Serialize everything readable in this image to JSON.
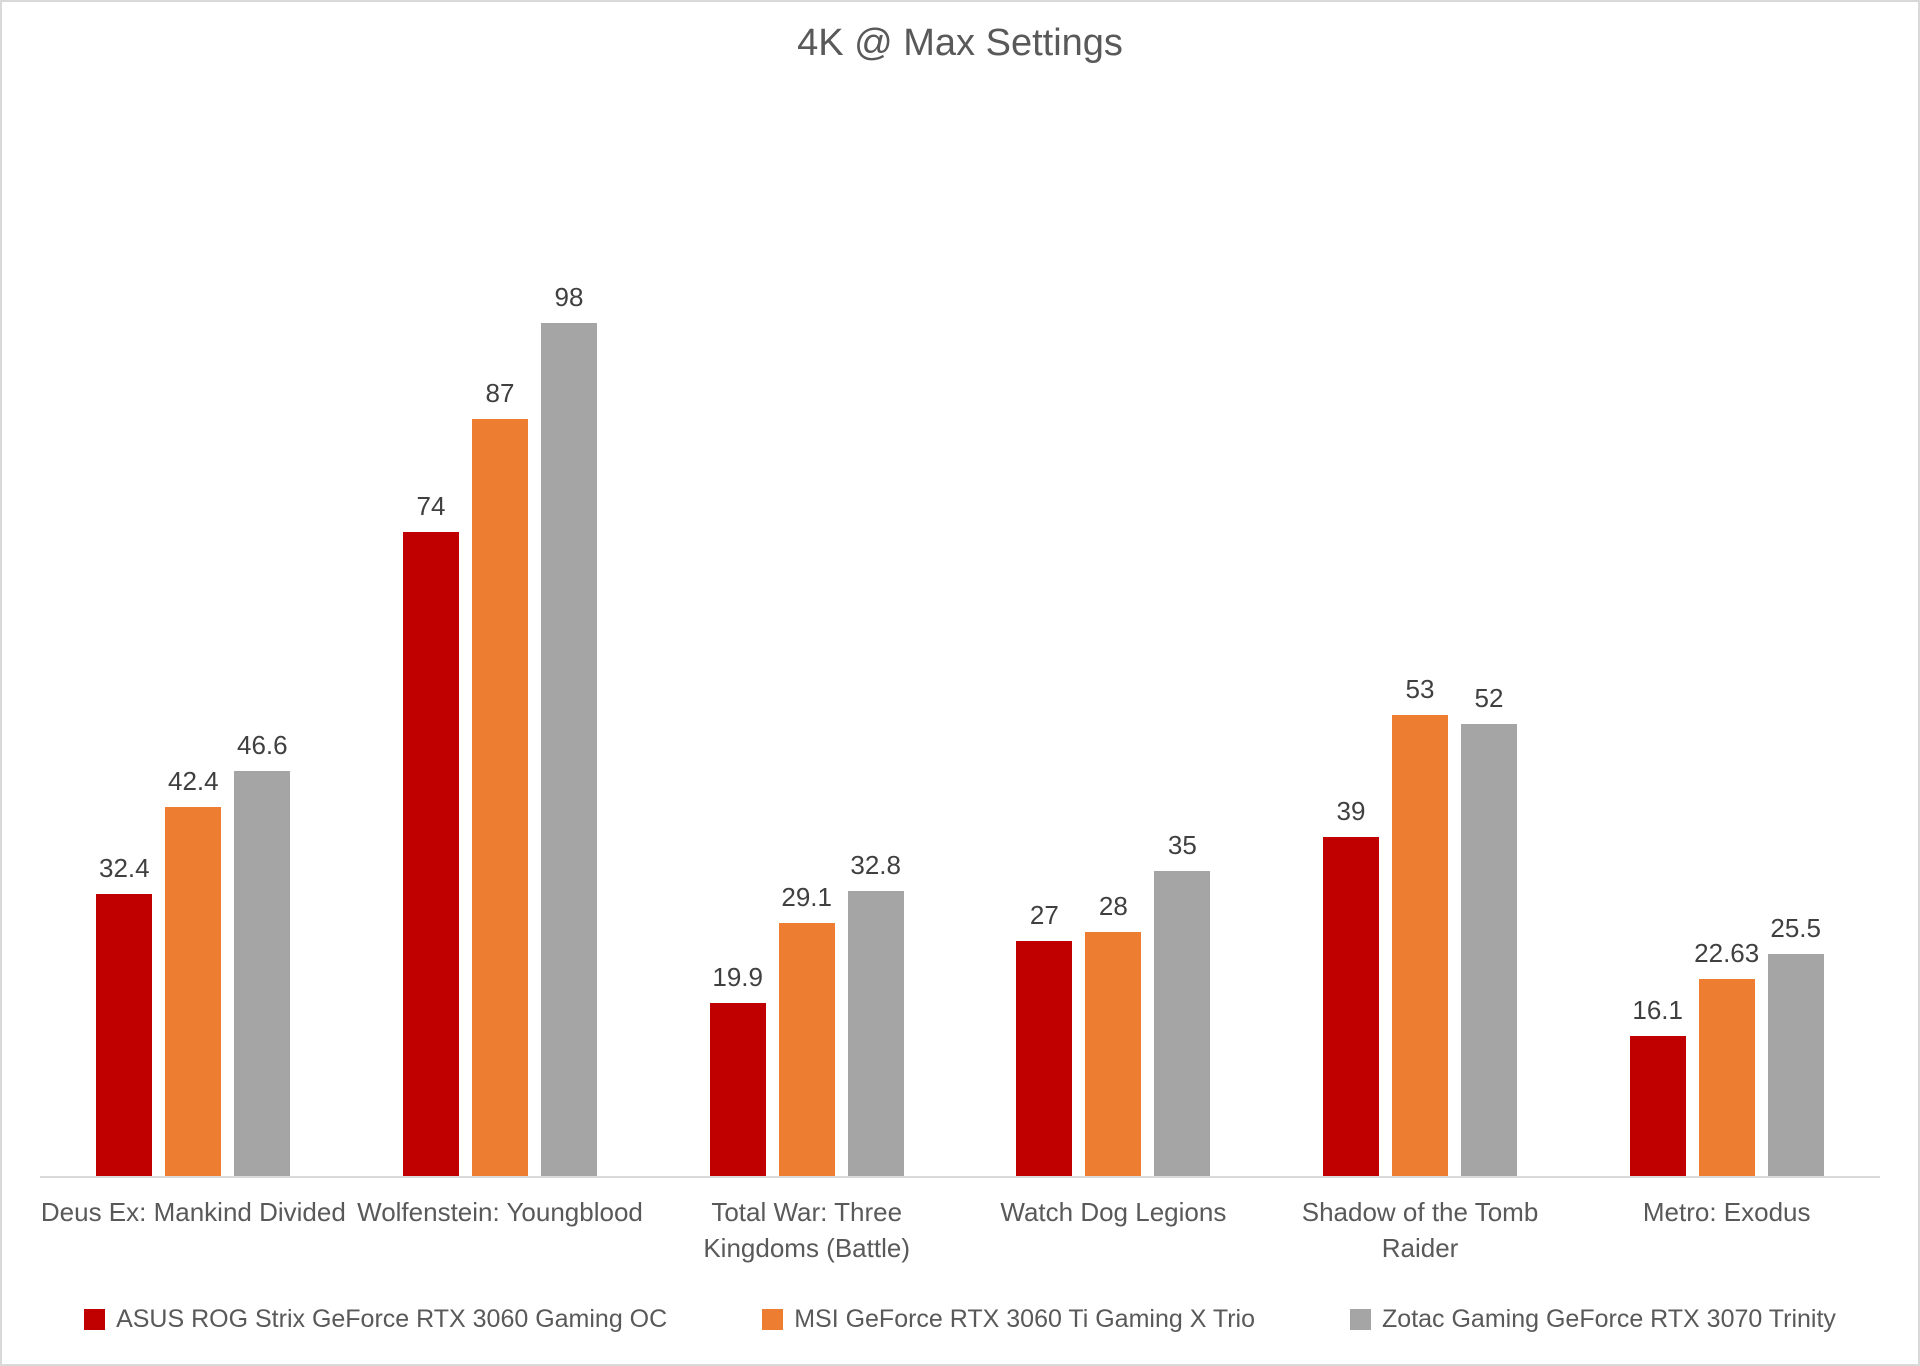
{
  "chart_data": {
    "type": "bar",
    "title": "4K @ Max Settings",
    "xlabel": "",
    "ylabel": "",
    "grid": false,
    "legend_position": "bottom",
    "ylim": [
      0,
      105
    ],
    "categories": [
      "Deus Ex: Mankind Divided",
      "Wolfenstein: Youngblood",
      "Total War: Three\nKingdoms (Battle)",
      "Watch Dog Legions",
      "Shadow of the Tomb\nRaider",
      "Metro: Exodus"
    ],
    "series": [
      {
        "name": "ASUS ROG Strix GeForce RTX 3060 Gaming OC",
        "color": "#c00000",
        "values": [
          32.4,
          74,
          19.9,
          27,
          39,
          16.1
        ]
      },
      {
        "name": "MSI GeForce RTX 3060 Ti Gaming X Trio",
        "color": "#ed7d31",
        "values": [
          42.4,
          87,
          29.1,
          28,
          53,
          22.63
        ]
      },
      {
        "name": "Zotac Gaming GeForce RTX 3070 Trinity",
        "color": "#a5a5a5",
        "values": [
          46.6,
          98,
          32.8,
          35,
          52,
          25.5
        ]
      }
    ],
    "axis_line_color": "#d9d9d9",
    "title_color": "#595959",
    "label_color": "#404040"
  }
}
